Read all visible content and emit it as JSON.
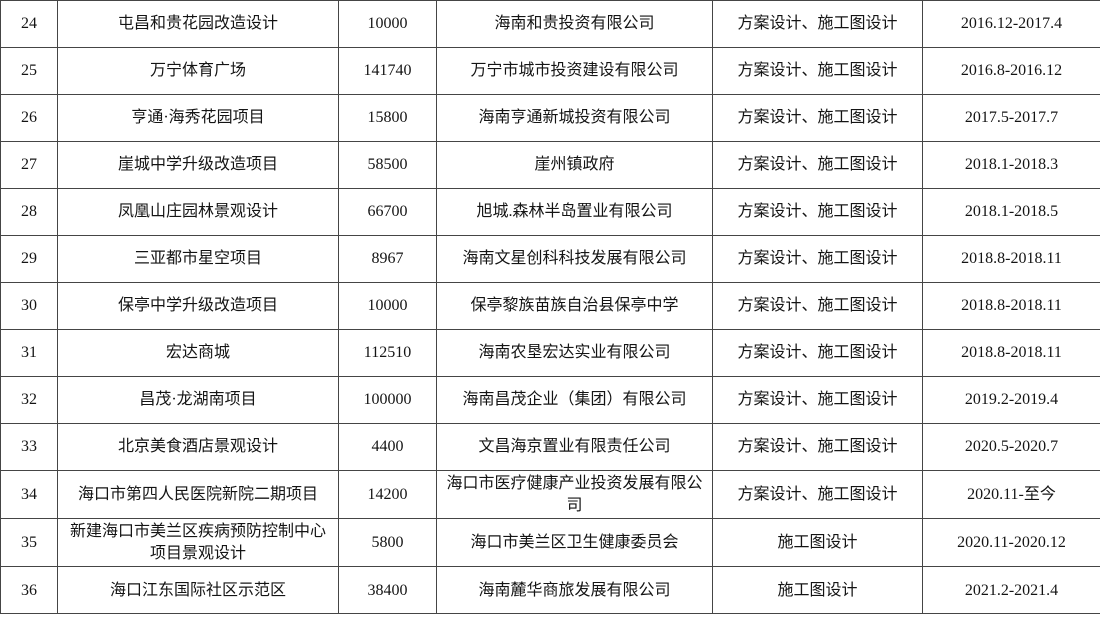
{
  "table": {
    "rows": [
      [
        "24",
        "屯昌和贵花园改造设计",
        "10000",
        "海南和贵投资有限公司",
        "方案设计、施工图设计",
        "2016.12-2017.4"
      ],
      [
        "25",
        "万宁体育广场",
        "141740",
        "万宁市城市投资建设有限公司",
        "方案设计、施工图设计",
        "2016.8-2016.12"
      ],
      [
        "26",
        "亨通·海秀花园项目",
        "15800",
        "海南亨通新城投资有限公司",
        "方案设计、施工图设计",
        "2017.5-2017.7"
      ],
      [
        "27",
        "崖城中学升级改造项目",
        "58500",
        "崖州镇政府",
        "方案设计、施工图设计",
        "2018.1-2018.3"
      ],
      [
        "28",
        "凤凰山庄园林景观设计",
        "66700",
        "旭城.森林半岛置业有限公司",
        "方案设计、施工图设计",
        "2018.1-2018.5"
      ],
      [
        "29",
        "三亚都市星空项目",
        "8967",
        "海南文星创科科技发展有限公司",
        "方案设计、施工图设计",
        "2018.8-2018.11"
      ],
      [
        "30",
        "保亭中学升级改造项目",
        "10000",
        "保亭黎族苗族自治县保亭中学",
        "方案设计、施工图设计",
        "2018.8-2018.11"
      ],
      [
        "31",
        "宏达商城",
        "112510",
        "海南农垦宏达实业有限公司",
        "方案设计、施工图设计",
        "2018.8-2018.11"
      ],
      [
        "32",
        "昌茂·龙湖南项目",
        "100000",
        "海南昌茂企业（集团）有限公司",
        "方案设计、施工图设计",
        "2019.2-2019.4"
      ],
      [
        "33",
        "北京美食酒店景观设计",
        "4400",
        "文昌海京置业有限责任公司",
        "方案设计、施工图设计",
        "2020.5-2020.7"
      ],
      [
        "34",
        "海口市第四人民医院新院二期项目",
        "14200",
        "海口市医疗健康产业投资发展有限公司",
        "方案设计、施工图设计",
        "2020.11-至今"
      ],
      [
        "35",
        "新建海口市美兰区疾病预防控制中心项目景观设计",
        "5800",
        "海口市美兰区卫生健康委员会",
        "施工图设计",
        "2020.11-2020.12"
      ],
      [
        "36",
        "海口江东国际社区示范区",
        "38400",
        "海南麓华商旅发展有限公司",
        "施工图设计",
        "2021.2-2021.4"
      ]
    ]
  }
}
